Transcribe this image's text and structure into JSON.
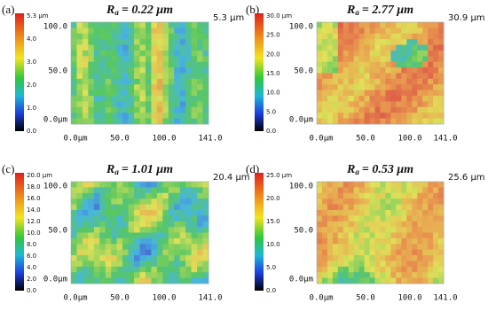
{
  "panels": [
    {
      "label": "(a)",
      "ra_symbol": "R",
      "ra_subscript": "a",
      "ra_value": "= 0.22 μm",
      "max_height": "5.3 μm",
      "colorbar_ticks": [
        "5.3 μm",
        "4.0",
        "3.0",
        "2.0",
        "1.0",
        "0.0"
      ],
      "y_ticks": [
        "100.0",
        "50.0",
        "0.0μm"
      ],
      "x_ticks": [
        "0.0μm",
        "50.0",
        "100.0",
        "141.0"
      ]
    },
    {
      "label": "(b)",
      "ra_symbol": "R",
      "ra_subscript": "a",
      "ra_value": "= 2.77 μm",
      "max_height": "30.9 μm",
      "colorbar_ticks": [
        "30.0 μm",
        "25.0",
        "20.0",
        "15.0",
        "10.0",
        "5.0",
        "0.0"
      ],
      "y_ticks": [
        "100.0",
        "50.0",
        "0.0μm"
      ],
      "x_ticks": [
        "0.0μm",
        "50.0",
        "100.0",
        "141.0"
      ]
    },
    {
      "label": "(c)",
      "ra_symbol": "R",
      "ra_subscript": "a",
      "ra_value": "= 1.01  μm",
      "max_height": "20.4 μm",
      "colorbar_ticks": [
        "20.0 μm",
        "18.0",
        "16.0",
        "14.0",
        "12.0",
        "10.0",
        "8.0",
        "6.0",
        "4.0",
        "2.0",
        "0.0"
      ],
      "y_ticks": [
        "100.0",
        "50.0",
        "0.0μm"
      ],
      "x_ticks": [
        "0.0μm",
        "50.0",
        "100.0",
        "141.0"
      ]
    },
    {
      "label": "(d)",
      "ra_symbol": "R",
      "ra_subscript": "a",
      "ra_value": "= 0.53  μm",
      "max_height": "25.6 μm",
      "colorbar_ticks": [
        "25.0 μm",
        "20.0",
        "15.0",
        "10.0",
        "5.0",
        "0.0"
      ],
      "y_ticks": [
        "100.0",
        "50.0",
        "0.0μm"
      ],
      "x_ticks": [
        "0.0μm",
        "50.0",
        "100.0",
        "141.0"
      ]
    }
  ]
}
